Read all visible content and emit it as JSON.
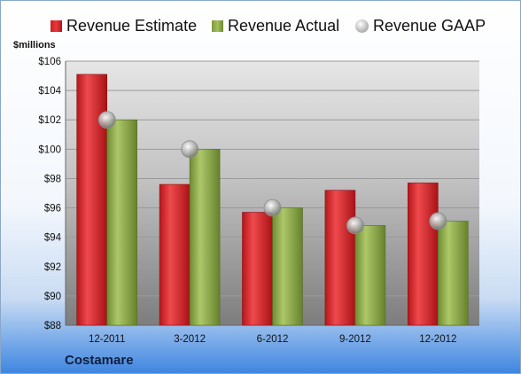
{
  "legend": {
    "estimate": "Revenue Estimate",
    "actual": "Revenue Actual",
    "gaap": "Revenue GAAP"
  },
  "unit_label": "$millions",
  "company": "Costamare",
  "colors": {
    "estimate": "#d42a2d",
    "actual": "#93b24d",
    "gaap": "#a9a9a9"
  },
  "chart_data": {
    "type": "bar",
    "title": "",
    "ylabel": "$millions",
    "ylim": [
      88,
      106
    ],
    "yticks": [
      88,
      90,
      92,
      94,
      96,
      98,
      100,
      102,
      104,
      106
    ],
    "ytick_labels": [
      "$88",
      "$90",
      "$92",
      "$94",
      "$96",
      "$98",
      "$100",
      "$102",
      "$104",
      "$106"
    ],
    "categories": [
      "12-2011",
      "3-2012",
      "6-2012",
      "9-2012",
      "12-2012"
    ],
    "series": [
      {
        "name": "Revenue Estimate",
        "kind": "bar",
        "values": [
          105.1,
          97.6,
          95.7,
          97.2,
          97.7
        ]
      },
      {
        "name": "Revenue Actual",
        "kind": "bar",
        "values": [
          102.0,
          100.0,
          96.0,
          94.8,
          95.1
        ]
      },
      {
        "name": "Revenue GAAP",
        "kind": "point",
        "values": [
          102.0,
          100.0,
          96.0,
          94.8,
          95.1
        ]
      }
    ],
    "grid": true,
    "legend_position": "top"
  }
}
